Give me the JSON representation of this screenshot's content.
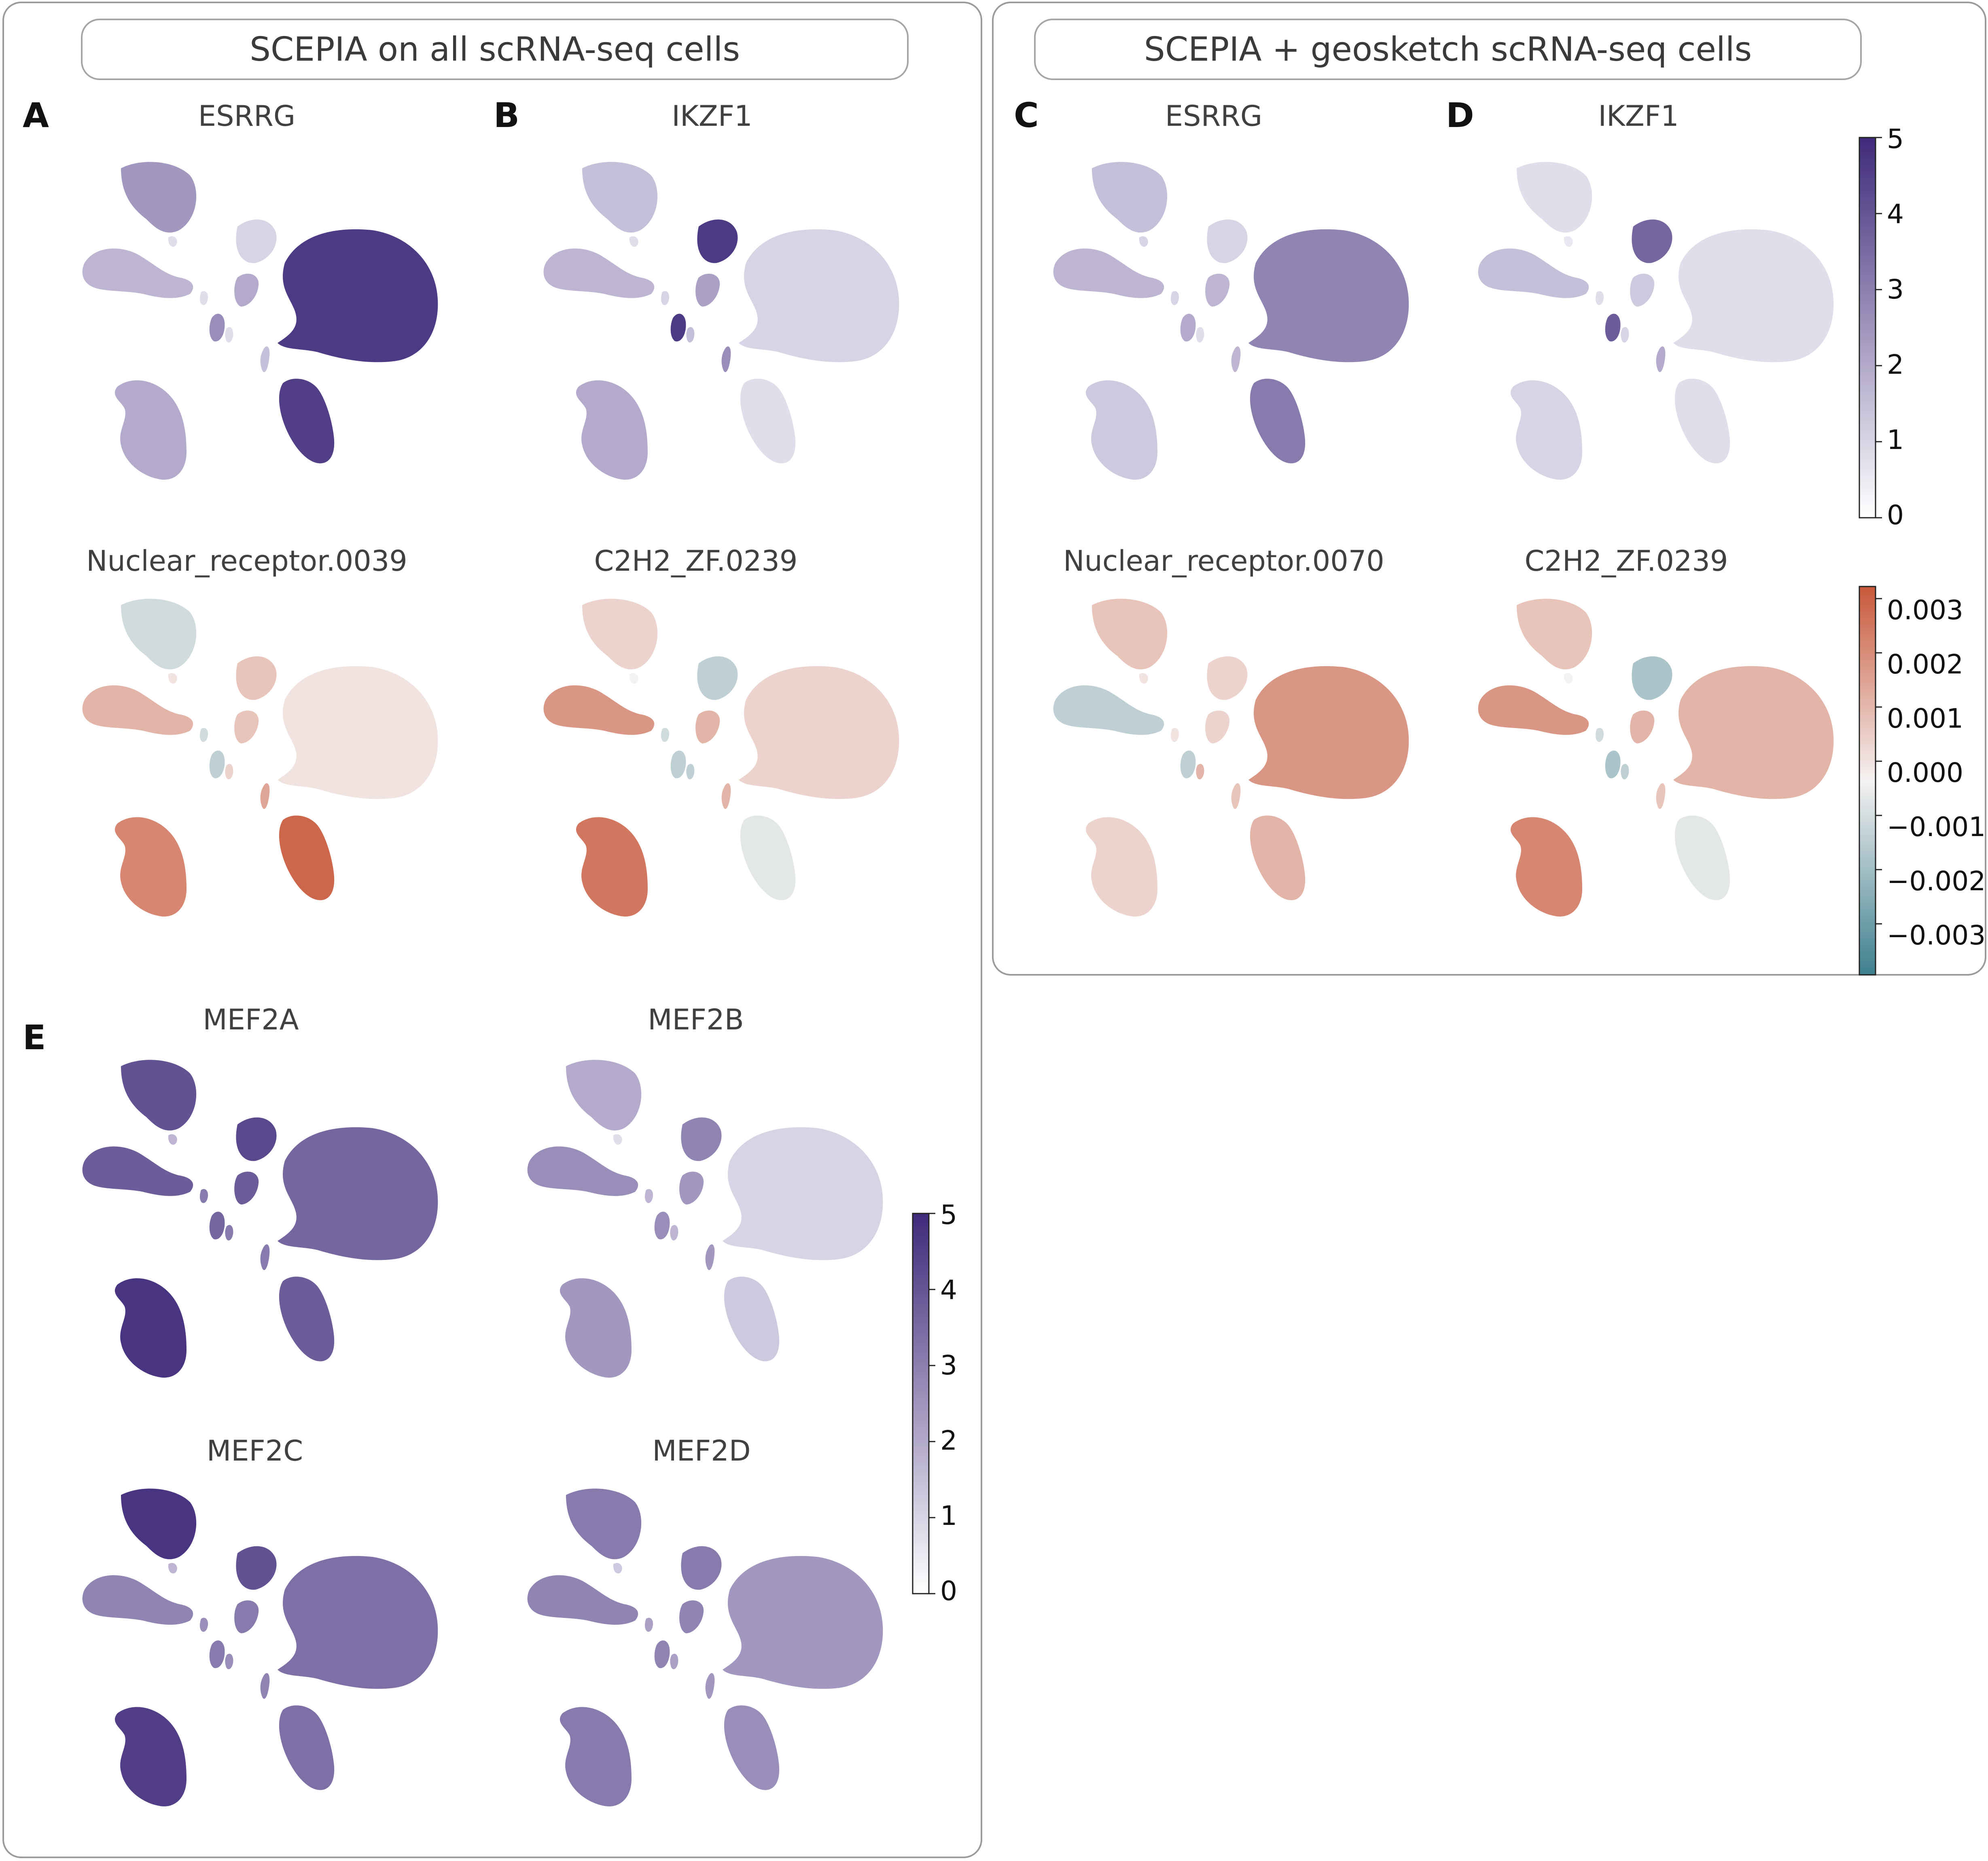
{
  "headers": {
    "left": "SCEPIA on all scRNA-seq cells",
    "right": "SCEPIA + geosketch scRNA-seq cells"
  },
  "panel_letters": [
    "A",
    "B",
    "C",
    "D",
    "E"
  ],
  "colorbars": {
    "expression": {
      "ticks": [
        "5",
        "4",
        "3",
        "2",
        "1",
        "0"
      ],
      "low_color": "#ffffff",
      "high_color": "#3f2a7a"
    },
    "motif": {
      "ticks": [
        "0.003",
        "0.002",
        "0.001",
        "0.000",
        "−0.001",
        "−0.002",
        "−0.003"
      ],
      "high_color": "#c8583a",
      "mid_color": "#f5f2f2",
      "low_color": "#3d7f8e"
    }
  },
  "chart_data": [
    {
      "type": "scatter",
      "panel": "A",
      "title": "ESRRG",
      "colormap": "expression",
      "intensity": {
        "c0": 0.45,
        "c1": 0.1,
        "c2": 0.15,
        "c3": 0.3,
        "c4": 0.1,
        "c5": 0.35,
        "c6": 0.5,
        "c7": 0.1,
        "c8": 0.35,
        "c9": 0.92,
        "c10": 0.9,
        "c11": 0.25
      }
    },
    {
      "type": "scatter",
      "panel": "B",
      "title": "IKZF1",
      "colormap": "expression",
      "intensity": {
        "c0": 0.25,
        "c1": 0.1,
        "c2": 0.92,
        "c3": 0.3,
        "c4": 0.15,
        "c5": 0.4,
        "c6": 0.92,
        "c7": 0.25,
        "c8": 0.35,
        "c9": 0.15,
        "c10": 0.1,
        "c11": 0.5
      }
    },
    {
      "type": "scatter",
      "panel": "A",
      "title": "Nuclear_receptor.0039",
      "colormap": "motif",
      "intensity": {
        "c0": -0.2,
        "c1": 0.1,
        "c2": 0.3,
        "c3": 0.4,
        "c4": -0.2,
        "c5": 0.3,
        "c6": -0.3,
        "c7": 0.2,
        "c8": 0.7,
        "c9": 0.1,
        "c10": 0.9,
        "c11": 0.5
      }
    },
    {
      "type": "scatter",
      "panel": "B",
      "title": "C2H2_ZF.0239",
      "colormap": "motif",
      "intensity": {
        "c0": 0.2,
        "c1": 0.0,
        "c2": -0.3,
        "c3": 0.6,
        "c4": -0.2,
        "c5": 0.4,
        "c6": -0.3,
        "c7": -0.3,
        "c8": 0.8,
        "c9": 0.2,
        "c10": -0.1,
        "c11": 0.4
      }
    },
    {
      "type": "scatter",
      "panel": "C",
      "title": "ESRRG",
      "colormap": "expression",
      "intensity": {
        "c0": 0.25,
        "c1": 0.15,
        "c2": 0.15,
        "c3": 0.3,
        "c4": 0.15,
        "c5": 0.3,
        "c6": 0.35,
        "c7": 0.1,
        "c8": 0.2,
        "c9": 0.55,
        "c10": 0.6,
        "c11": 0.3
      }
    },
    {
      "type": "scatter",
      "panel": "D",
      "title": "IKZF1",
      "colormap": "expression",
      "intensity": {
        "c0": 0.1,
        "c1": 0.05,
        "c2": 0.7,
        "c3": 0.25,
        "c4": 0.1,
        "c5": 0.2,
        "c6": 0.75,
        "c7": 0.15,
        "c8": 0.15,
        "c9": 0.1,
        "c10": 0.1,
        "c11": 0.35
      }
    },
    {
      "type": "scatter",
      "panel": "C",
      "title": "Nuclear_receptor.0070",
      "colormap": "motif",
      "intensity": {
        "c0": 0.3,
        "c1": 0.1,
        "c2": 0.2,
        "c3": -0.3,
        "c4": 0.1,
        "c5": 0.2,
        "c6": -0.3,
        "c7": 0.4,
        "c8": 0.2,
        "c9": 0.6,
        "c10": 0.4,
        "c11": 0.3
      }
    },
    {
      "type": "scatter",
      "panel": "D",
      "title": "C2H2_ZF.0239",
      "colormap": "motif",
      "intensity": {
        "c0": 0.3,
        "c1": 0.0,
        "c2": -0.4,
        "c3": 0.6,
        "c4": -0.2,
        "c5": 0.4,
        "c6": -0.4,
        "c7": -0.3,
        "c8": 0.7,
        "c9": 0.4,
        "c10": -0.1,
        "c11": 0.3
      }
    },
    {
      "type": "scatter",
      "panel": "E",
      "title": "MEF2A",
      "colormap": "expression",
      "intensity": {
        "c0": 0.8,
        "c1": 0.3,
        "c2": 0.85,
        "c3": 0.75,
        "c4": 0.6,
        "c5": 0.75,
        "c6": 0.7,
        "c7": 0.6,
        "c8": 0.95,
        "c9": 0.7,
        "c10": 0.75,
        "c11": 0.6
      }
    },
    {
      "type": "scatter",
      "panel": "E",
      "title": "MEF2B",
      "colormap": "expression",
      "intensity": {
        "c0": 0.35,
        "c1": 0.1,
        "c2": 0.55,
        "c3": 0.5,
        "c4": 0.3,
        "c5": 0.45,
        "c6": 0.5,
        "c7": 0.3,
        "c8": 0.45,
        "c9": 0.15,
        "c10": 0.2,
        "c11": 0.45
      }
    },
    {
      "type": "scatter",
      "panel": "E",
      "title": "MEF2C",
      "colormap": "expression",
      "intensity": {
        "c0": 0.95,
        "c1": 0.3,
        "c2": 0.8,
        "c3": 0.55,
        "c4": 0.5,
        "c5": 0.6,
        "c6": 0.6,
        "c7": 0.5,
        "c8": 0.9,
        "c9": 0.65,
        "c10": 0.65,
        "c11": 0.55
      }
    },
    {
      "type": "scatter",
      "panel": "E",
      "title": "MEF2D",
      "colormap": "expression",
      "intensity": {
        "c0": 0.6,
        "c1": 0.2,
        "c2": 0.6,
        "c3": 0.55,
        "c4": 0.4,
        "c5": 0.55,
        "c6": 0.55,
        "c7": 0.4,
        "c8": 0.6,
        "c9": 0.45,
        "c10": 0.5,
        "c11": 0.45
      }
    }
  ]
}
